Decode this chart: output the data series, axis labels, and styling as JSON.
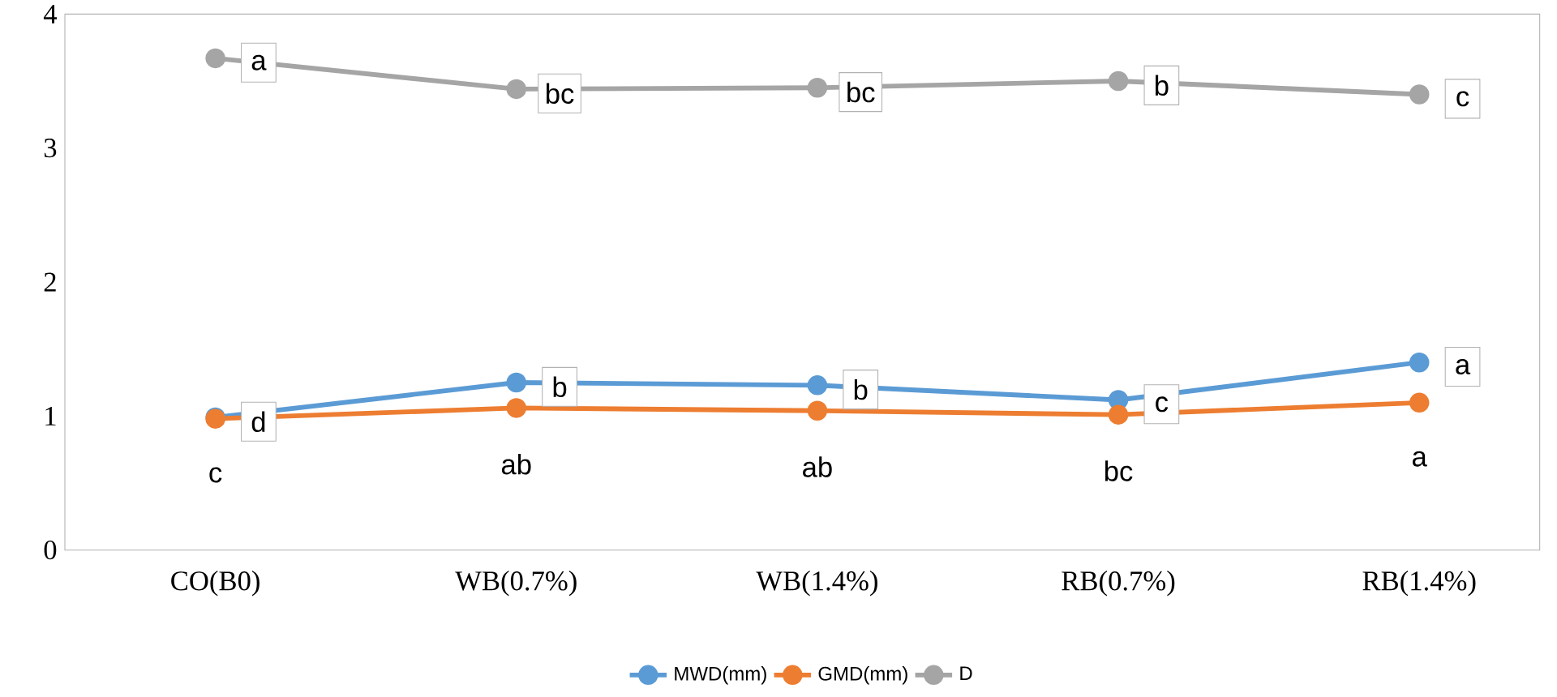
{
  "chart_data": {
    "type": "line",
    "categories": [
      "CO(B0)",
      "WB(0.7%)",
      "WB(1.4%)",
      "RB(0.7%)",
      "RB(1.4%)"
    ],
    "series": [
      {
        "name": "MWD(mm)",
        "color": "#5b9bd5",
        "values": [
          0.99,
          1.25,
          1.23,
          1.12,
          1.4
        ]
      },
      {
        "name": "GMD(mm)",
        "color": "#ed7d31",
        "values": [
          0.98,
          1.06,
          1.04,
          1.01,
          1.1
        ]
      },
      {
        "name": "D",
        "color": "#a5a5a5",
        "values": [
          3.67,
          3.44,
          3.45,
          3.5,
          3.4
        ]
      }
    ],
    "ylim": [
      0,
      4
    ],
    "yticks": [
      0,
      1,
      2,
      3,
      4
    ],
    "grid": false,
    "legend": "bottom",
    "marker": "circle",
    "line_style": "solid",
    "annotations": [
      {
        "text": "a",
        "x": "CO(B0)",
        "y": 3.67
      },
      {
        "text": "bc",
        "x": "WB(0.7%)",
        "y": 3.44
      },
      {
        "text": "bc",
        "x": "WB(1.4%)",
        "y": 3.45
      },
      {
        "text": "b",
        "x": "RB(0.7%)",
        "y": 3.5
      },
      {
        "text": "c",
        "x": "RB(1.4%)",
        "y": 3.4
      },
      {
        "text": "d",
        "x": "CO(B0)",
        "y": 0.99
      },
      {
        "text": "b",
        "x": "WB(0.7%)",
        "y": 1.25
      },
      {
        "text": "b",
        "x": "WB(1.4%)",
        "y": 1.23
      },
      {
        "text": "c",
        "x": "RB(0.7%)",
        "y": 1.12
      },
      {
        "text": "a",
        "x": "RB(1.4%)",
        "y": 1.4
      },
      {
        "text": "c",
        "x": "CO(B0)",
        "y": 0.98
      },
      {
        "text": "ab",
        "x": "WB(0.7%)",
        "y": 1.06
      },
      {
        "text": "ab",
        "x": "WB(1.4%)",
        "y": 1.04
      },
      {
        "text": "bc",
        "x": "RB(0.7%)",
        "y": 1.01
      },
      {
        "text": "a",
        "x": "RB(1.4%)",
        "y": 1.1
      }
    ]
  }
}
